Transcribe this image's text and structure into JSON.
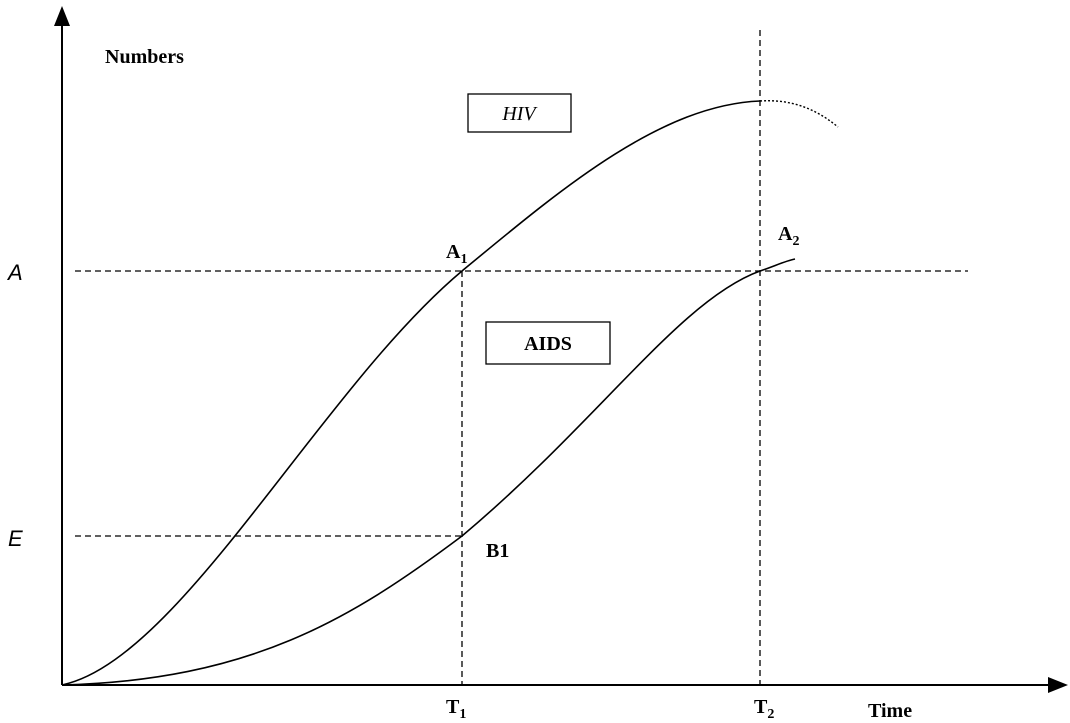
{
  "axis_labels": {
    "y": "Numbers",
    "x": "Time"
  },
  "boxes": {
    "hiv": "HIV",
    "aids": "AIDS"
  },
  "levels": {
    "a": "A",
    "b": "E"
  },
  "points": {
    "a1": {
      "main": "A",
      "sub": "1"
    },
    "a2": {
      "main": "A",
      "sub": "2"
    },
    "b1": "B1"
  },
  "times": {
    "t1": {
      "main": "T",
      "sub": "1"
    },
    "t2": {
      "main": "T",
      "sub": "2"
    }
  }
}
